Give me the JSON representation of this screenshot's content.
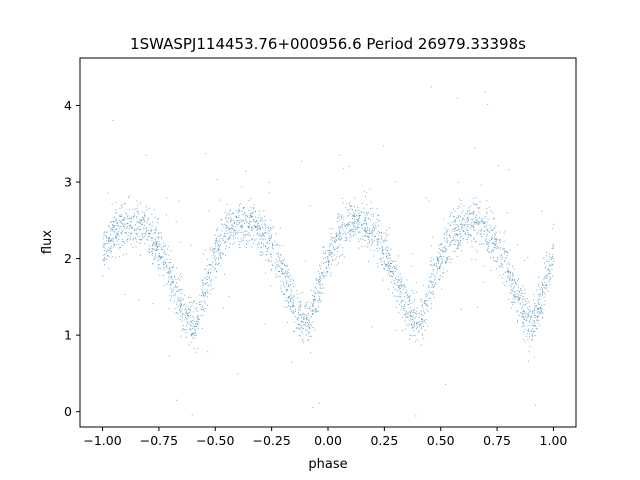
{
  "chart_data": {
    "type": "scatter",
    "title": "1SWASPJ114453.76+000956.6 Period 26979.33398s",
    "xlabel": "phase",
    "ylabel": "flux",
    "xlim": [
      -1.1,
      1.1
    ],
    "ylim": [
      -0.2,
      4.62
    ],
    "xticks": [
      -1.0,
      -0.75,
      -0.5,
      -0.25,
      0.0,
      0.25,
      0.5,
      0.75,
      1.0
    ],
    "xtick_labels": [
      "−1.00",
      "−0.75",
      "−0.50",
      "−0.25",
      "0.00",
      "0.25",
      "0.50",
      "0.75",
      "1.00"
    ],
    "yticks": [
      0,
      1,
      2,
      3,
      4
    ],
    "ytick_labels": [
      "0",
      "1",
      "2",
      "3",
      "4"
    ],
    "grid": false,
    "legend": "none",
    "series": [
      {
        "color": "#1f77b4",
        "marker": "point",
        "x_range": [
          -1.0,
          1.0
        ],
        "profile": {
          "phase": [
            -1.0,
            -0.95,
            -0.9,
            -0.85,
            -0.8,
            -0.75,
            -0.7,
            -0.65,
            -0.62,
            -0.6,
            -0.58,
            -0.55,
            -0.5,
            -0.45,
            -0.4,
            -0.35,
            -0.3,
            -0.25,
            -0.2,
            -0.15,
            -0.12,
            -0.1,
            -0.08,
            -0.05,
            0.0,
            0.05,
            0.1,
            0.15,
            0.2,
            0.25,
            0.3,
            0.35,
            0.38,
            0.4,
            0.42,
            0.45,
            0.5,
            0.55,
            0.6,
            0.65,
            0.7,
            0.75,
            0.8,
            0.85,
            0.88,
            0.9,
            0.92,
            0.95,
            1.0
          ],
          "flux": [
            2.15,
            2.35,
            2.45,
            2.45,
            2.35,
            2.1,
            1.75,
            1.35,
            1.2,
            1.15,
            1.25,
            1.6,
            2.05,
            2.35,
            2.45,
            2.45,
            2.35,
            2.15,
            1.8,
            1.35,
            1.2,
            1.15,
            1.2,
            1.55,
            2.05,
            2.35,
            2.45,
            2.45,
            2.35,
            2.1,
            1.75,
            1.35,
            1.2,
            1.15,
            1.25,
            1.6,
            2.05,
            2.35,
            2.45,
            2.45,
            2.35,
            2.15,
            1.8,
            1.35,
            1.2,
            1.15,
            1.25,
            1.55,
            2.15
          ]
        },
        "scatter_sigma": 0.15
      }
    ]
  }
}
